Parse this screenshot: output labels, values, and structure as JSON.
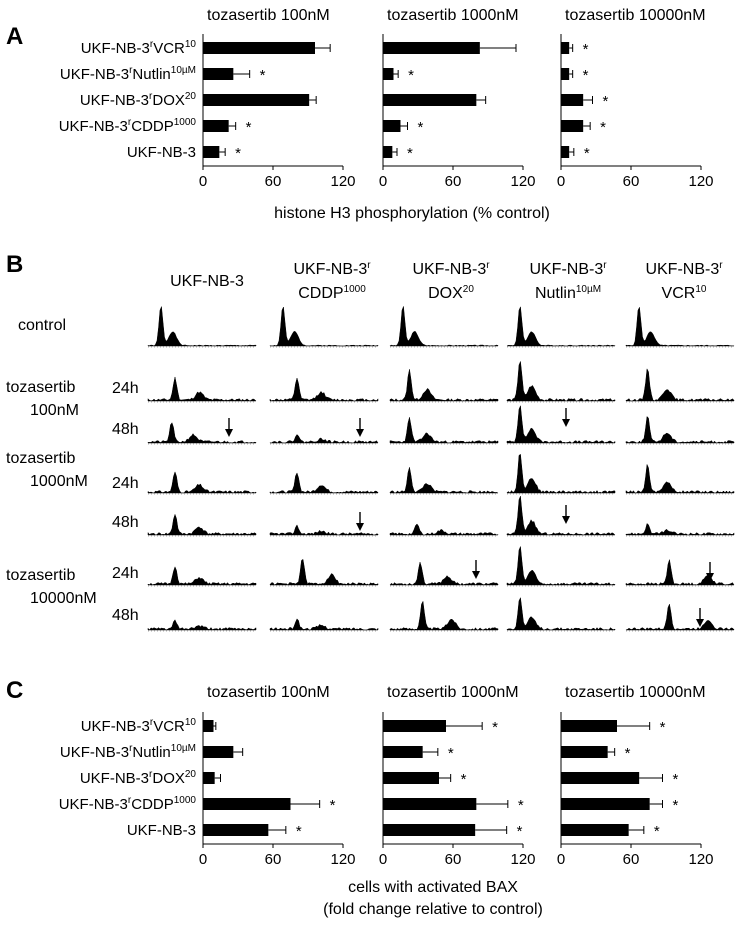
{
  "figure": {
    "panel_a": "A",
    "panel_b": "B",
    "panel_c": "C"
  },
  "chart_data": [
    {
      "type": "bar",
      "orientation": "horizontal",
      "panel": "A",
      "xlabel": "histone H3 phosphorylation (% control)",
      "xlim": [
        0,
        120
      ],
      "xticks": [
        "0",
        "60",
        "120"
      ],
      "categories": [
        "UKF-NB-3rVCR10",
        "UKF-NB-3rNutlin10µM",
        "UKF-NB-3rDOX20",
        "UKF-NB-3rCDDP1000",
        "UKF-NB-3"
      ],
      "category_parts": [
        {
          "base": "UKF-NB-3",
          "r": "r",
          "drug": "VCR",
          "sup": "10"
        },
        {
          "base": "UKF-NB-3",
          "r": "r",
          "drug": "Nutlin",
          "sup": "10µM"
        },
        {
          "base": "UKF-NB-3",
          "r": "r",
          "drug": "DOX",
          "sup": "20"
        },
        {
          "base": "UKF-NB-3",
          "r": "r",
          "drug": "CDDP",
          "sup": "1000"
        },
        {
          "base": "UKF-NB-3",
          "r": "",
          "drug": "",
          "sup": ""
        }
      ],
      "subplots": [
        {
          "title": "tozasertib 100nM",
          "values": [
            96,
            26,
            91,
            22,
            14
          ],
          "errors": [
            13,
            14,
            6,
            6,
            5
          ],
          "significant": [
            false,
            true,
            false,
            true,
            true
          ]
        },
        {
          "title": "tozasertib 1000nM",
          "values": [
            83,
            9,
            80,
            15,
            8
          ],
          "errors": [
            31,
            4,
            8,
            6,
            4
          ],
          "significant": [
            false,
            true,
            false,
            true,
            true
          ]
        },
        {
          "title": "tozasertib 10000nM",
          "values": [
            7,
            7,
            19,
            19,
            7
          ],
          "errors": [
            3,
            3,
            8,
            6,
            4
          ],
          "significant": [
            true,
            true,
            true,
            true,
            true
          ]
        }
      ]
    },
    {
      "type": "other",
      "panel": "B",
      "description_columns": [
        {
          "line1": "UKF-NB-3",
          "line2": "",
          "sup": ""
        },
        {
          "line1": "UKF-NB-3r",
          "line2": "CDDP",
          "sup": "1000"
        },
        {
          "line1": "UKF-NB-3r",
          "line2": "DOX",
          "sup": "20"
        },
        {
          "line1": "UKF-NB-3r",
          "line2": "Nutlin",
          "sup": "10µM"
        },
        {
          "line1": "UKF-NB-3r",
          "line2": "VCR",
          "sup": "10"
        }
      ],
      "row_groups": [
        {
          "label1": "control",
          "label2": ""
        },
        {
          "label1": "tozasertib",
          "label2": "100nM"
        },
        {
          "label1": "tozasertib",
          "label2": "1000nM"
        },
        {
          "label1": "tozasertib",
          "label2": "10000nM"
        }
      ],
      "times": [
        "24h",
        "48h"
      ]
    },
    {
      "type": "bar",
      "orientation": "horizontal",
      "panel": "C",
      "xlabel_line1": "cells with activated BAX",
      "xlabel_line2": "(fold change relative to control)",
      "xlim": [
        0,
        120
      ],
      "xticks": [
        "0",
        "60",
        "120"
      ],
      "categories": [
        "UKF-NB-3rVCR10",
        "UKF-NB-3rNutlin10µM",
        "UKF-NB-3rDOX20",
        "UKF-NB-3rCDDP1000",
        "UKF-NB-3"
      ],
      "subplots": [
        {
          "title": "tozasertib 100nM",
          "values": [
            9,
            26,
            10,
            75,
            56
          ],
          "errors": [
            2,
            8,
            5,
            25,
            15
          ],
          "significant": [
            false,
            false,
            false,
            true,
            true
          ]
        },
        {
          "title": "tozasertib 1000nM",
          "values": [
            54,
            34,
            48,
            80,
            79
          ],
          "errors": [
            31,
            13,
            10,
            27,
            27
          ],
          "significant": [
            true,
            true,
            true,
            true,
            true
          ]
        },
        {
          "title": "tozasertib 10000nM",
          "values": [
            48,
            40,
            67,
            76,
            58
          ],
          "errors": [
            28,
            6,
            20,
            11,
            13
          ],
          "significant": [
            true,
            true,
            true,
            true,
            true
          ]
        }
      ]
    }
  ],
  "star": "*"
}
